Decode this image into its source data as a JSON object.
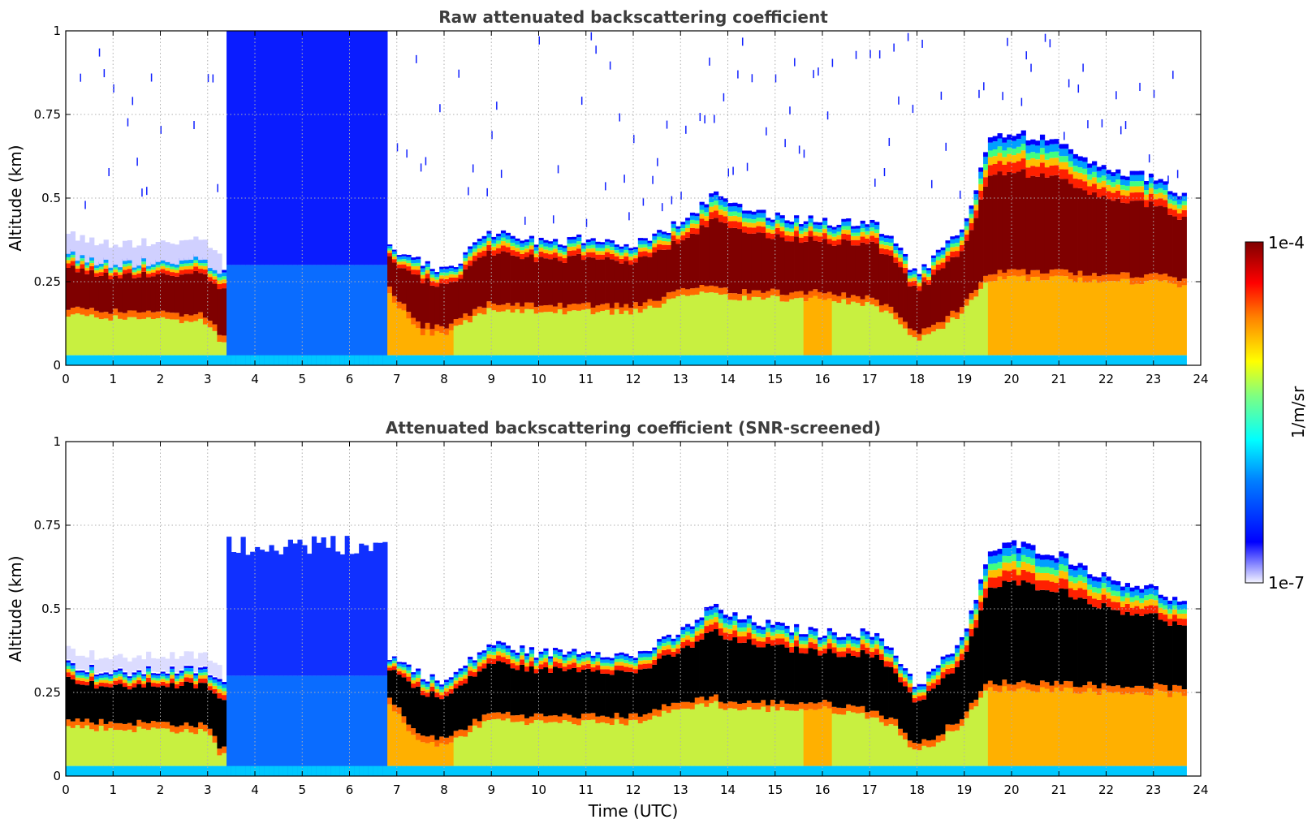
{
  "chart_data": [
    {
      "type": "heatmap",
      "title": "Raw attenuated backscattering coefficient",
      "xlabel": "",
      "ylabel": "Altitude (km)",
      "xlim": [
        0,
        24
      ],
      "ylim": [
        0,
        1
      ],
      "xticks": [
        "0",
        "1",
        "2",
        "3",
        "4",
        "5",
        "6",
        "7",
        "8",
        "9",
        "10",
        "11",
        "12",
        "13",
        "14",
        "15",
        "16",
        "17",
        "18",
        "19",
        "20",
        "21",
        "22",
        "23",
        "24"
      ],
      "yticks": [
        "0",
        "0.25",
        "0.5",
        "0.75",
        "1"
      ],
      "grid": true,
      "peak_layer_color": "#7f0000",
      "layer_profile": {
        "time_utc": [
          0,
          1,
          2,
          3,
          3.3,
          6.8,
          7.5,
          8,
          9,
          10,
          11,
          12,
          13,
          13.7,
          14,
          15,
          16,
          17,
          17.5,
          18,
          18.5,
          19,
          19.5,
          20,
          21,
          22,
          23,
          23.7
        ],
        "layer_top_km": [
          0.33,
          0.3,
          0.31,
          0.31,
          0.27,
          0.36,
          0.3,
          0.27,
          0.39,
          0.36,
          0.37,
          0.35,
          0.42,
          0.5,
          0.47,
          0.44,
          0.42,
          0.42,
          0.37,
          0.26,
          0.33,
          0.4,
          0.65,
          0.68,
          0.65,
          0.58,
          0.55,
          0.5
        ],
        "layer_base_km": [
          0.17,
          0.16,
          0.16,
          0.15,
          0.08,
          0.24,
          0.12,
          0.11,
          0.19,
          0.18,
          0.18,
          0.18,
          0.22,
          0.24,
          0.22,
          0.22,
          0.22,
          0.2,
          0.17,
          0.09,
          0.13,
          0.18,
          0.28,
          0.28,
          0.28,
          0.27,
          0.27,
          0.26
        ]
      },
      "fog_period_utc": [
        3.4,
        6.75
      ],
      "data_end_utc": 23.7
    },
    {
      "type": "heatmap",
      "title": "Attenuated backscattering coefficient (SNR-screened)",
      "xlabel": "Time (UTC)",
      "ylabel": "Altitude (km)",
      "xlim": [
        0,
        24
      ],
      "ylim": [
        0,
        1
      ],
      "xticks": [
        "0",
        "1",
        "2",
        "3",
        "4",
        "5",
        "6",
        "7",
        "8",
        "9",
        "10",
        "11",
        "12",
        "13",
        "14",
        "15",
        "16",
        "17",
        "18",
        "19",
        "20",
        "21",
        "22",
        "23",
        "24"
      ],
      "yticks": [
        "0",
        "0.25",
        "0.5",
        "0.75",
        "1"
      ],
      "grid": true,
      "peak_layer_color": "#000000",
      "layer_profile": {
        "time_utc": [
          0,
          1,
          2,
          3,
          3.3,
          6.8,
          7.5,
          8,
          9,
          10,
          11,
          12,
          13,
          13.7,
          14,
          15,
          16,
          17,
          17.5,
          18,
          18.5,
          19,
          19.5,
          20,
          21,
          22,
          23,
          23.7
        ],
        "layer_top_km": [
          0.33,
          0.3,
          0.31,
          0.31,
          0.27,
          0.36,
          0.3,
          0.27,
          0.39,
          0.36,
          0.37,
          0.35,
          0.42,
          0.5,
          0.47,
          0.44,
          0.42,
          0.42,
          0.37,
          0.26,
          0.33,
          0.4,
          0.65,
          0.68,
          0.65,
          0.58,
          0.55,
          0.5
        ],
        "layer_base_km": [
          0.17,
          0.16,
          0.16,
          0.15,
          0.08,
          0.24,
          0.12,
          0.11,
          0.19,
          0.18,
          0.18,
          0.18,
          0.22,
          0.24,
          0.22,
          0.22,
          0.22,
          0.2,
          0.17,
          0.09,
          0.13,
          0.18,
          0.28,
          0.28,
          0.28,
          0.27,
          0.27,
          0.26
        ]
      },
      "fog_period_utc": [
        3.4,
        6.75
      ],
      "data_end_utc": 23.7
    }
  ],
  "colorbar": {
    "label": "1/m/sr",
    "max_label": "1e-4",
    "min_label": "1e-7",
    "colormap": [
      "#ffffff",
      "#e4e4ff",
      "#8080ff",
      "#0000ff",
      "#0080ff",
      "#00ffff",
      "#80ff80",
      "#ffff00",
      "#ff8000",
      "#ff0000",
      "#7f0000"
    ]
  }
}
